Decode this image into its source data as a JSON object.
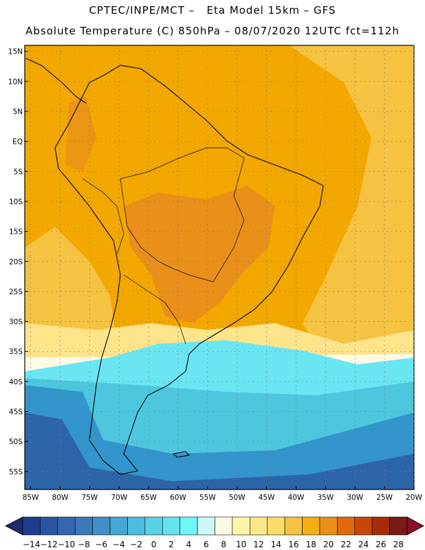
{
  "header": {
    "line1": "CPTEC/INPE/MCT –   Eta Model 15km – GFS",
    "line2": "Absolute Temperature (C) 850hPa – 08/07/2020 12UTC fct=112h"
  },
  "map": {
    "lat_labels": [
      "15N",
      "10N",
      "5N",
      "EQ",
      "5S",
      "10S",
      "15S",
      "20S",
      "25S",
      "30S",
      "35S",
      "40S",
      "45S",
      "50S",
      "55S"
    ],
    "lon_labels": [
      "85W",
      "80W",
      "75W",
      "70W",
      "65W",
      "60W",
      "55W",
      "50W",
      "45W",
      "40W",
      "35W",
      "30W",
      "25W",
      "20W"
    ],
    "lat_range": [
      -58,
      16
    ],
    "lon_range": [
      -86,
      -20
    ],
    "field_colors": {
      "warm_n": "#f2a800",
      "hot": "#e8901a",
      "mild": "#f5c242",
      "cool": "#fde48a",
      "cold1": "#6ae6f2",
      "cold2": "#4ec6de",
      "cold3": "#3494cc",
      "cold4": "#2c64a8"
    }
  },
  "colorbar": {
    "labels": [
      "-14",
      "-12",
      "-10",
      "-8",
      "-6",
      "-4",
      "-2",
      "0",
      "2",
      "4",
      "6",
      "8",
      "10",
      "12",
      "14",
      "16",
      "18",
      "20",
      "22",
      "24",
      "26",
      "28"
    ],
    "colors": [
      "#1e3c8c",
      "#2a55a0",
      "#3366ad",
      "#3a7abb",
      "#3f8fc8",
      "#45a7d4",
      "#4ebcdf",
      "#58d2e6",
      "#64e3ef",
      "#6ef5f5",
      "#cdf6f8",
      "#fffae6",
      "#fff5aa",
      "#fde888",
      "#fbdb6a",
      "#f5c242",
      "#f2ae14",
      "#e8901a",
      "#e06a0c",
      "#c8460a",
      "#a82b0a",
      "#7a1a14"
    ],
    "low_color": "#1e2a6e",
    "high_color": "#8a0f2a"
  }
}
